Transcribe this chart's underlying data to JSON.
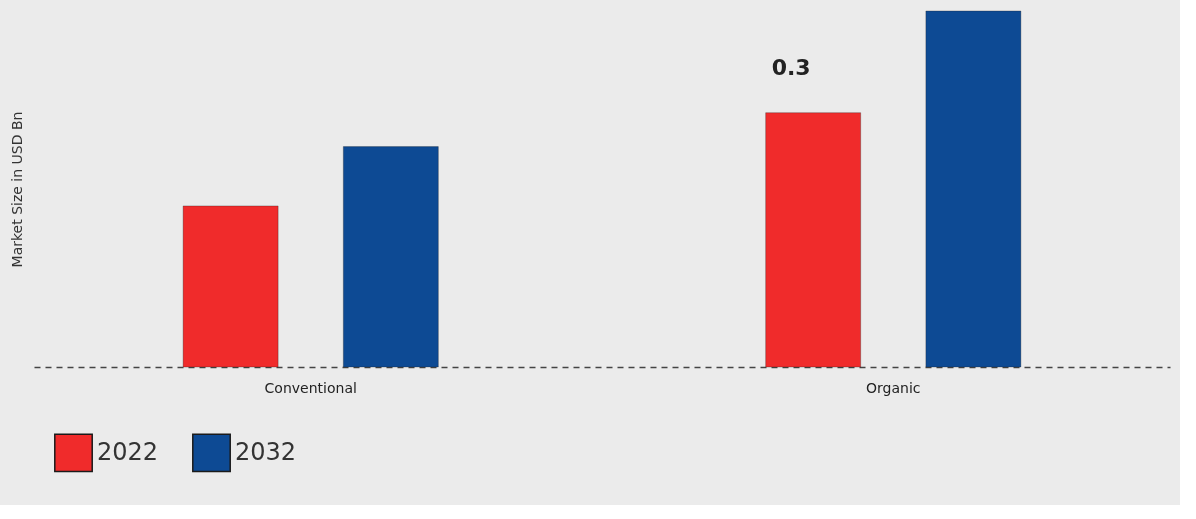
{
  "chart_data": {
    "type": "bar",
    "ylabel": "Market Size in USD Bn",
    "categories": [
      "Conventional",
      "Organic"
    ],
    "series": [
      {
        "name": "2022",
        "color": "#f02b2b",
        "values": [
          0.19,
          0.3
        ],
        "value_labels": [
          null,
          "0.3"
        ]
      },
      {
        "name": "2032",
        "color": "#0d4a94",
        "values": [
          0.26,
          0.42
        ]
      }
    ],
    "legend": "bottom",
    "tick_labels": "x",
    "grid": false
  }
}
